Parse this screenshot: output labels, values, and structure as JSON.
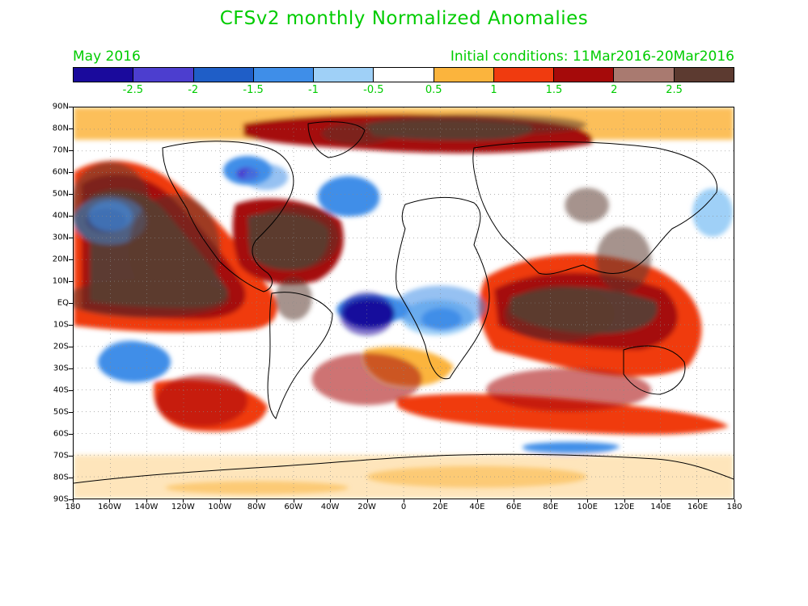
{
  "title": "CFSv2 monthly Normalized Anomalies",
  "subtitle_left": "May 2016",
  "subtitle_right": "Initial conditions: 11Mar2016-20Mar2016",
  "colorbar": {
    "colors": [
      "#1a0a9c",
      "#4c3ecf",
      "#1f5ec7",
      "#3f8ee8",
      "#9fd0f7",
      "#ffffff",
      "#fbb43d",
      "#f03b0f",
      "#a50a0a",
      "#a97a70",
      "#5c3a30"
    ],
    "labels": [
      "-2.5",
      "-2",
      "-1.5",
      "-1",
      "-0.5",
      "0.5",
      "1",
      "1.5",
      "2",
      "2.5"
    ]
  },
  "axes": {
    "lat_labels": [
      "90N",
      "80N",
      "70N",
      "60N",
      "50N",
      "40N",
      "30N",
      "20N",
      "10N",
      "EQ",
      "10S",
      "20S",
      "30S",
      "40S",
      "50S",
      "60S",
      "70S",
      "80S",
      "90S"
    ],
    "lon_labels": [
      "180",
      "160W",
      "140W",
      "120W",
      "100W",
      "80W",
      "60W",
      "40W",
      "20W",
      "0",
      "20E",
      "40E",
      "60E",
      "80E",
      "100E",
      "120E",
      "140E",
      "160E",
      "180"
    ]
  },
  "map_regions": [
    {
      "level": "strong_warm",
      "lon": -160,
      "lat": 45,
      "rx": 22,
      "ry": 20
    },
    {
      "level": "strong_warm",
      "lon": -125,
      "lat": 25,
      "rx": 25,
      "ry": 25
    },
    {
      "level": "strong_warm",
      "lon": -140,
      "lat": 2,
      "rx": 45,
      "ry": 9
    },
    {
      "level": "strong_warm",
      "lon": -60,
      "lat": 30,
      "rx": 25,
      "ry": 15
    },
    {
      "level": "strong_warm",
      "lon": -60,
      "lat": 2,
      "rx": 10,
      "ry": 10
    },
    {
      "level": "strong_warm",
      "lon": 40,
      "lat": 82,
      "rx": 60,
      "ry": 5
    },
    {
      "level": "strong_warm",
      "lon": -25,
      "lat": 78,
      "rx": 20,
      "ry": 5
    },
    {
      "level": "strong_warm",
      "lon": 85,
      "lat": -5,
      "rx": 30,
      "ry": 13
    },
    {
      "level": "strong_warm",
      "lon": 120,
      "lat": 20,
      "rx": 15,
      "ry": 15
    },
    {
      "level": "strong_warm",
      "lon": 100,
      "lat": 45,
      "rx": 12,
      "ry": 8
    },
    {
      "level": "cold",
      "lon": -160,
      "lat": 40,
      "rx": 12,
      "ry": 7
    },
    {
      "level": "cold",
      "lon": -150,
      "lat": -25,
      "rx": 15,
      "ry": 8
    },
    {
      "level": "cold",
      "lon": -75,
      "lat": 58,
      "rx": 12,
      "ry": 6
    },
    {
      "level": "cold",
      "lon": -25,
      "lat": 48,
      "rx": 12,
      "ry": 8
    },
    {
      "level": "cold",
      "lon": 20,
      "lat": -2,
      "rx": 25,
      "ry": 10
    },
    {
      "level": "cold",
      "lon": 90,
      "lat": -67,
      "rx": 25,
      "ry": 3
    },
    {
      "level": "very_cold",
      "lon": -20,
      "lat": -5,
      "rx": 15,
      "ry": 10
    },
    {
      "level": "moderate_warm",
      "lon": -110,
      "lat": -45,
      "rx": 25,
      "ry": 12
    },
    {
      "level": "moderate_warm",
      "lon": 90,
      "lat": -40,
      "rx": 45,
      "ry": 10
    },
    {
      "level": "moderate_warm",
      "lon": -20,
      "lat": -35,
      "rx": 30,
      "ry": 12
    },
    {
      "level": "weak_warm",
      "lon": 40,
      "lat": -80,
      "rx": 60,
      "ry": 5
    },
    {
      "level": "weak_warm",
      "lon": -80,
      "lat": -85,
      "rx": 50,
      "ry": 3
    }
  ]
}
